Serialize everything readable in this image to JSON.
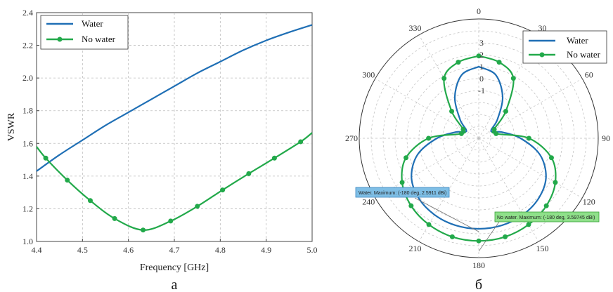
{
  "panel_labels": [
    "a",
    "б"
  ],
  "colors": {
    "water": "#1f6fb5",
    "no_water": "#22a94a",
    "grid": "#bdbdbd",
    "callout_water": "#7fbfe6",
    "callout_no_water": "#8fe08a"
  },
  "chart_data": [
    {
      "type": "line",
      "xlabel": "Frequency [GHz]",
      "ylabel": "VSWR",
      "xlim": [
        4.4,
        5.0
      ],
      "ylim": [
        1.0,
        2.4
      ],
      "x_ticks": [
        "4.4",
        "4.5",
        "4.6",
        "4.7",
        "4.8",
        "4.9",
        "5.0"
      ],
      "y_ticks": [
        "1.0",
        "1.2",
        "1.4",
        "1.6",
        "1.8",
        "2.0",
        "2.2",
        "2.4"
      ],
      "grid": true,
      "legend": "top-left",
      "series": [
        {
          "name": "Water",
          "markers": false,
          "x": [
            4.4,
            4.45,
            4.5,
            4.55,
            4.6,
            4.65,
            4.7,
            4.75,
            4.8,
            4.85,
            4.9,
            4.95,
            5.0
          ],
          "y": [
            1.43,
            1.53,
            1.62,
            1.71,
            1.79,
            1.87,
            1.95,
            2.03,
            2.1,
            2.17,
            2.23,
            2.28,
            2.325
          ]
        },
        {
          "name": "No water",
          "markers": true,
          "x": [
            4.4,
            4.42,
            4.467,
            4.517,
            4.57,
            4.632,
            4.692,
            4.75,
            4.805,
            4.862,
            4.918,
            4.975,
            5.0
          ],
          "y": [
            1.58,
            1.51,
            1.375,
            1.25,
            1.14,
            1.07,
            1.125,
            1.215,
            1.315,
            1.415,
            1.51,
            1.61,
            1.665
          ]
        }
      ]
    },
    {
      "type": "polar",
      "angle_ticks": [
        "0",
        "30",
        "60",
        "90",
        "120",
        "150",
        "180",
        "210",
        "240",
        "270",
        "300",
        "330"
      ],
      "radial_ticks": [
        "3",
        "2",
        "1",
        "0",
        "-1"
      ],
      "rlim": [
        -5,
        5
      ],
      "grid": true,
      "legend": "top-right",
      "series": [
        {
          "name": "Water",
          "markers": false,
          "theta": [
            0,
            15,
            30,
            45,
            60,
            75,
            90,
            105,
            120,
            135,
            150,
            165,
            180
          ],
          "r": [
            1.0,
            0.5,
            -1.0,
            -2.8,
            -3.8,
            -3.0,
            -1.5,
            0.3,
            1.5,
            2.1,
            2.4,
            2.55,
            2.59
          ]
        },
        {
          "name": "No water",
          "markers": true,
          "theta": [
            0,
            15,
            30,
            45,
            60,
            75,
            90,
            105,
            120,
            135,
            150,
            165,
            180
          ],
          "r": [
            1.9,
            1.6,
            0.8,
            -1.8,
            -3.5,
            -3.5,
            -0.8,
            1.3,
            2.4,
            3.0,
            3.35,
            3.55,
            3.6
          ]
        }
      ],
      "annotations": [
        {
          "series": "Water",
          "text": "Water. Maximum: (-180 deg, 2.5911 dBi)"
        },
        {
          "series": "No water",
          "text": "No water. Maximum: (-180 deg, 3.59745 dBi)"
        }
      ]
    }
  ]
}
